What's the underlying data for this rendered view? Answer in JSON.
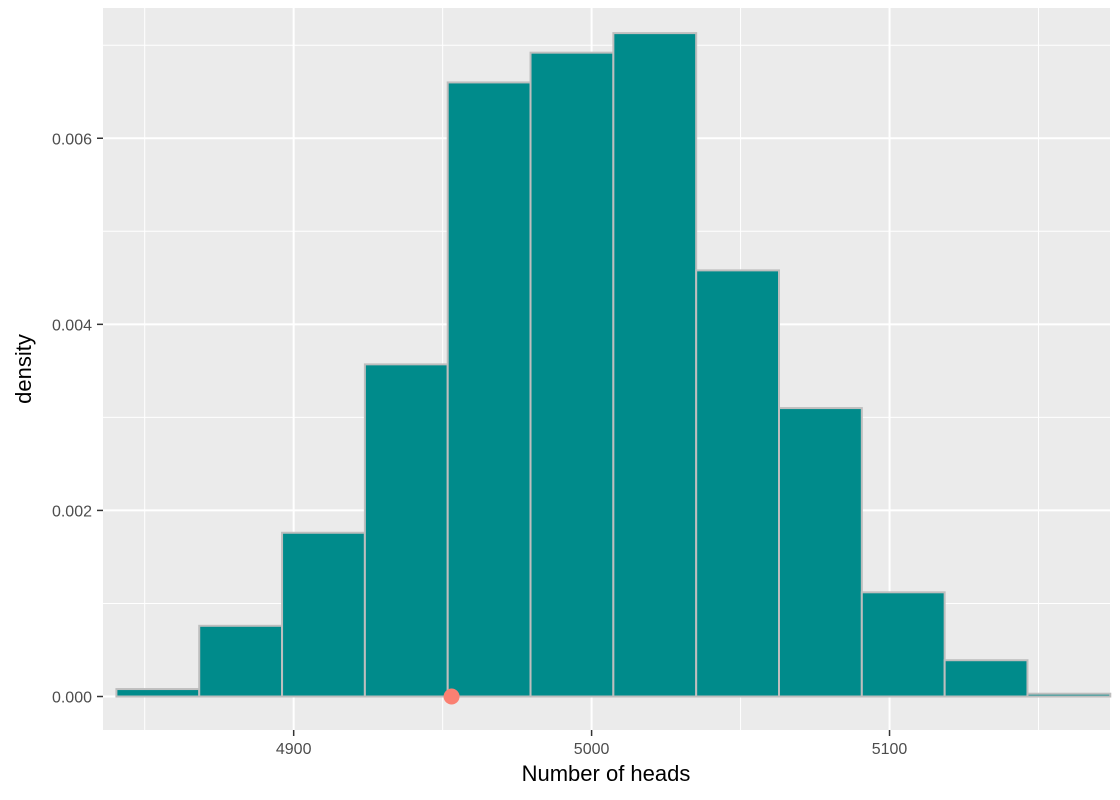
{
  "chart_data": {
    "type": "histogram",
    "xlabel": "Number of heads",
    "ylabel": "density",
    "xlim": [
      4836,
      5174
    ],
    "ylim": [
      -0.00036,
      0.0074
    ],
    "x_ticks": [
      4900,
      5000,
      5100
    ],
    "x_minor_ticks": [
      4850,
      4950,
      5050,
      5150
    ],
    "y_ticks": [
      0.0,
      0.002,
      0.004,
      0.006
    ],
    "y_tick_labels": [
      "0.000",
      "0.002",
      "0.004",
      "0.006"
    ],
    "y_minor_ticks": [
      0.001,
      0.003,
      0.005,
      0.007
    ],
    "grid": true,
    "bins": [
      {
        "x0": 4840.5,
        "x1": 4868.3,
        "density": 8e-05
      },
      {
        "x0": 4868.3,
        "x1": 4896.1,
        "density": 0.00076
      },
      {
        "x0": 4896.1,
        "x1": 4923.9,
        "density": 0.00176
      },
      {
        "x0": 4923.9,
        "x1": 4951.7,
        "density": 0.00357
      },
      {
        "x0": 4951.7,
        "x1": 4979.5,
        "density": 0.0066
      },
      {
        "x0": 4979.5,
        "x1": 5007.3,
        "density": 0.00692
      },
      {
        "x0": 5007.3,
        "x1": 5035.1,
        "density": 0.00713
      },
      {
        "x0": 5035.1,
        "x1": 5062.9,
        "density": 0.00458
      },
      {
        "x0": 5062.9,
        "x1": 5090.7,
        "density": 0.0031
      },
      {
        "x0": 5090.7,
        "x1": 5118.5,
        "density": 0.00112
      },
      {
        "x0": 5118.5,
        "x1": 5146.3,
        "density": 0.00039
      },
      {
        "x0": 5146.3,
        "x1": 5174.1,
        "density": 3e-05
      }
    ],
    "observed_point": {
      "x": 4953,
      "y": 0.0
    },
    "colors": {
      "panel": "#ebebeb",
      "grid": "#ffffff",
      "bar_fill": "#008b8b",
      "bar_stroke": "#bebebe",
      "point": "#fa8072"
    }
  }
}
